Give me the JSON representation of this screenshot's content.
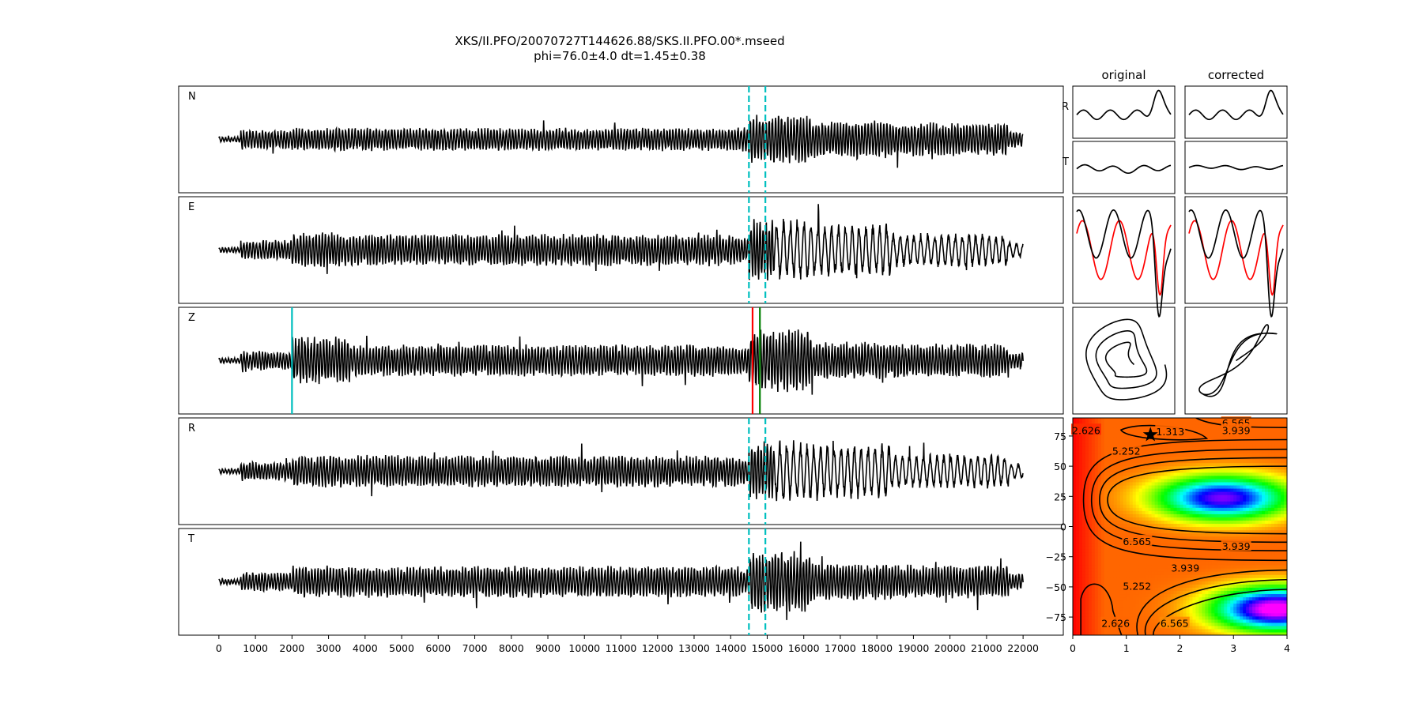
{
  "figure": {
    "title": "XKS/II.PFO/20070727T144626.88/SKS.II.PFO.00*.mseed",
    "subtitle": "phi=76.0±4.0 dt=1.45±0.38"
  },
  "colors": {
    "trace": "#000000",
    "window_marker": "#00bfbf",
    "p_pick": "#00bfbf",
    "sks_red": "#ff0000",
    "sks_green": "#008000",
    "fast_trace": "#ff0000",
    "star": "#000000"
  },
  "chart_data": [
    {
      "type": "line",
      "name": "seismograms",
      "channels": [
        "N",
        "E",
        "Z",
        "R",
        "T"
      ],
      "x_ticks": [
        0,
        1000,
        2000,
        3000,
        4000,
        5000,
        6000,
        7000,
        8000,
        9000,
        10000,
        11000,
        12000,
        13000,
        14000,
        15000,
        16000,
        17000,
        18000,
        19000,
        20000,
        21000,
        22000
      ],
      "xlim": [
        -1100,
        23100
      ],
      "data_extent": [
        0,
        22000
      ],
      "window_markers": [
        14500,
        14950
      ],
      "window_marker_channels": [
        "N",
        "E",
        "R",
        "T"
      ],
      "p_pick": 2000,
      "sks_picks": [
        14600,
        14800
      ],
      "style": "dashed window markers"
    },
    {
      "type": "line",
      "name": "particle-motion",
      "column_labels": [
        "original",
        "corrected"
      ],
      "row_labels": [
        "R",
        "T"
      ]
    },
    {
      "type": "heatmap",
      "name": "energy-grid",
      "colormap": "gist_rainbow",
      "xlim": [
        0,
        4
      ],
      "ylim": [
        -90,
        90
      ],
      "x_ticks": [
        0,
        1,
        2,
        3,
        4
      ],
      "y_ticks": [
        75,
        50,
        25,
        0,
        -25,
        -50,
        -75
      ],
      "contour_labels": [
        {
          "text": "1.313",
          "x": 1.82,
          "y": 79
        },
        {
          "text": "6.565",
          "x": 3.05,
          "y": 86
        },
        {
          "text": "3.939",
          "x": 3.05,
          "y": 80
        },
        {
          "text": "2.626",
          "x": 0.25,
          "y": 80
        },
        {
          "text": "5.252",
          "x": 1.0,
          "y": 63
        },
        {
          "text": "6.565",
          "x": 1.2,
          "y": -12
        },
        {
          "text": "3.939",
          "x": 3.05,
          "y": -16
        },
        {
          "text": "3.939",
          "x": 2.1,
          "y": -34
        },
        {
          "text": "5.252",
          "x": 1.2,
          "y": -49
        },
        {
          "text": "2.626",
          "x": 0.8,
          "y": -80
        },
        {
          "text": "6.565",
          "x": 1.9,
          "y": -80
        }
      ],
      "best": {
        "dt": 1.45,
        "phi": 76.0
      }
    }
  ]
}
